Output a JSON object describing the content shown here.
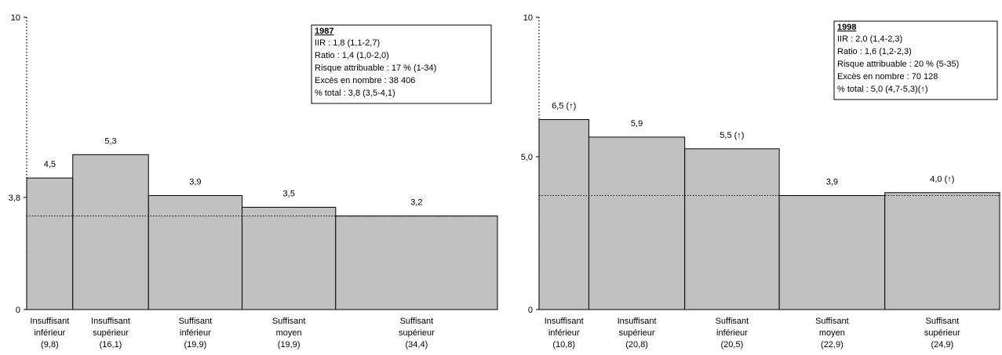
{
  "chart_data": [
    {
      "type": "bar",
      "title": "",
      "xlabel": "",
      "ylabel": "",
      "ylim": [
        0,
        10
      ],
      "yticks": [
        "0",
        "3,8",
        "10"
      ],
      "reference_value": 3.2,
      "categories": [
        {
          "line1": "Insuffisant",
          "line2": "inférieur",
          "width": "(9,8)"
        },
        {
          "line1": "Insuffisant",
          "line2": "supérieur",
          "width": "(16,1)"
        },
        {
          "line1": "Suffisant",
          "line2": "inférieur",
          "width": "(19,9)"
        },
        {
          "line1": "Suffisant",
          "line2": "moyen",
          "width": "(19,9)"
        },
        {
          "line1": "Suffisant",
          "line2": "supérieur",
          "width": "(34,4)"
        }
      ],
      "widths": [
        9.8,
        16.1,
        19.9,
        19.9,
        34.4
      ],
      "values": [
        4.5,
        5.3,
        3.9,
        3.5,
        3.2
      ],
      "value_labels": [
        "4,5",
        "5,3",
        "3,9",
        "3,5",
        "3,2"
      ],
      "infobox": {
        "title": "1987",
        "lines": [
          "IIR : 1,8 (1,1-2,7)",
          "Ratio : 1,4 (1,0-2,0)",
          "Risque attribuable : 17 % (1-34)",
          "Excès en nombre : 38 406",
          "% total : 3,8 (3,5-4,1)"
        ]
      }
    },
    {
      "type": "bar",
      "title": "",
      "xlabel": "",
      "ylabel": "",
      "ylim": [
        0,
        10
      ],
      "yticks": [
        "0",
        "5,0",
        "10"
      ],
      "reference_value": 3.9,
      "categories": [
        {
          "line1": "Insuffisant",
          "line2": "inférieur",
          "width": "(10,8)"
        },
        {
          "line1": "Insuffisant",
          "line2": "supérieur",
          "width": "(20,8)"
        },
        {
          "line1": "Suffisant",
          "line2": "inférieur",
          "width": "(20,5)"
        },
        {
          "line1": "Suffisant",
          "line2": "moyen",
          "width": "(22,9)"
        },
        {
          "line1": "Suffisant",
          "line2": "supérieur",
          "width": "(24,9)"
        }
      ],
      "widths": [
        10.8,
        20.8,
        20.5,
        22.9,
        24.9
      ],
      "values": [
        6.5,
        5.9,
        5.5,
        3.9,
        4.0
      ],
      "value_labels": [
        "6,5 (↑)",
        "5,9",
        "5,5 (↑)",
        "3,9",
        "4,0 (↑)"
      ],
      "infobox": {
        "title": "1998",
        "lines": [
          "IIR : 2,0 (1,4-2,3)",
          "Ratio : 1,6 (1,2-2,3)",
          "Risque attribuable : 20 % (5-35)",
          "Excès en nombre : 70 128",
          "% total : 5,0 (4,7-5,3)(↑)"
        ]
      }
    }
  ],
  "colors": {
    "bar_fill": "#c0c0c0",
    "bar_stroke": "#000000",
    "axis": "#000000"
  }
}
